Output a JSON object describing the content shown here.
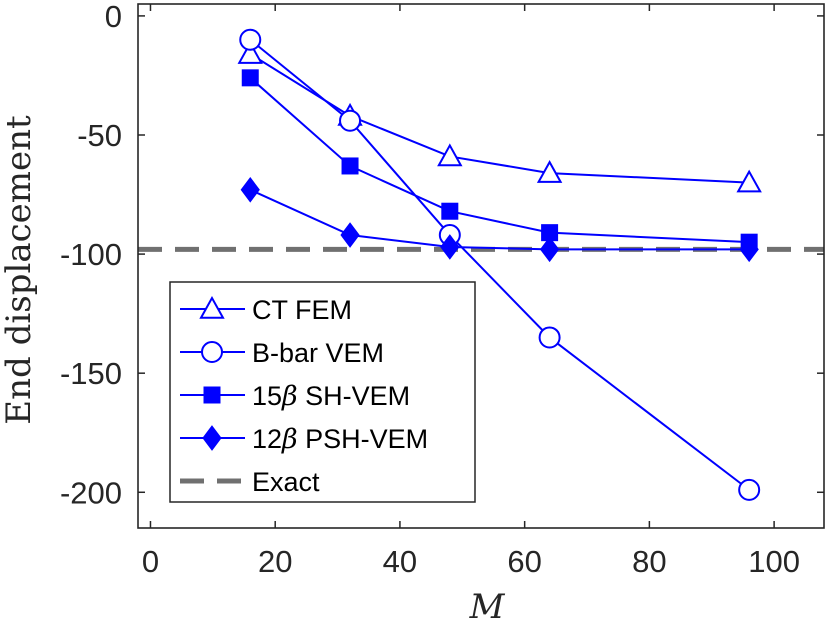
{
  "chart_data": {
    "type": "line",
    "title": "",
    "xlabel": "M",
    "ylabel": "End displacement",
    "xlim": [
      -2,
      108
    ],
    "ylim": [
      -215,
      5
    ],
    "xticks": [
      0,
      20,
      40,
      60,
      80,
      100
    ],
    "yticks": [
      0,
      -50,
      -100,
      -150,
      -200
    ],
    "xtick_labels": [
      "0",
      "20",
      "40",
      "60",
      "80",
      "100"
    ],
    "ytick_labels": [
      "0",
      "-50",
      "-100",
      "-150",
      "-200"
    ],
    "grid": false,
    "legend_position": "bottom-left",
    "colors": {
      "series": "#0000ff",
      "exact": "#707070",
      "axis": "#262626"
    },
    "series": [
      {
        "name": "CT FEM",
        "legend_prefix": "CT FEM",
        "legend_beta": "",
        "legend_suffix": "",
        "marker": "triangle-open",
        "x": [
          16,
          32,
          48,
          64,
          96
        ],
        "values": [
          -16,
          -42,
          -59,
          -66,
          -70
        ]
      },
      {
        "name": "B-bar VEM",
        "legend_prefix": "B-bar VEM",
        "legend_beta": "",
        "legend_suffix": "",
        "marker": "circle-open",
        "x": [
          16,
          32,
          48,
          64,
          96
        ],
        "values": [
          -10,
          -44,
          -92,
          -135,
          -199
        ]
      },
      {
        "name": "15β SH-VEM",
        "legend_prefix": "15",
        "legend_beta": "β",
        "legend_suffix": " SH-VEM",
        "marker": "square-filled",
        "x": [
          16,
          32,
          48,
          64,
          96
        ],
        "values": [
          -26,
          -63,
          -82,
          -91,
          -95
        ]
      },
      {
        "name": "12β PSH-VEM",
        "legend_prefix": "12",
        "legend_beta": "β",
        "legend_suffix": " PSH-VEM",
        "marker": "diamond-filled",
        "x": [
          16,
          32,
          48,
          64,
          96
        ],
        "values": [
          -73,
          -92,
          -97,
          -98,
          -98
        ]
      }
    ],
    "exact": {
      "name": "Exact",
      "value": -98
    }
  }
}
